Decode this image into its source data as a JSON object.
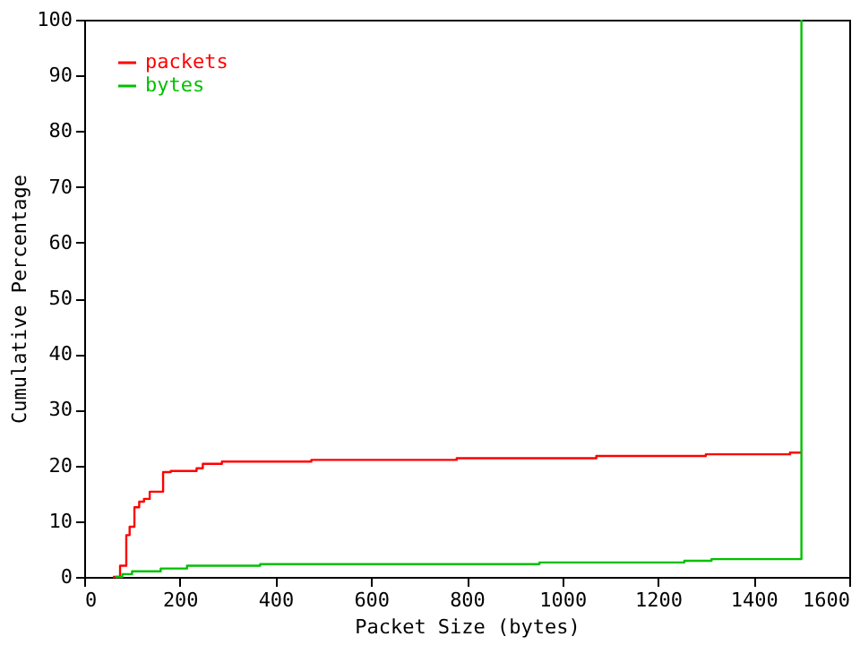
{
  "chart_data": {
    "type": "step",
    "xlabel": "Packet Size (bytes)",
    "ylabel": "Cumulative Percentage",
    "xlim": [
      0,
      1600
    ],
    "xticks": [
      0,
      200,
      400,
      600,
      800,
      1000,
      1200,
      1400,
      1600
    ],
    "ylim": [
      0,
      100
    ],
    "yticks": [
      0,
      10,
      20,
      30,
      40,
      50,
      60,
      70,
      80,
      90,
      100
    ],
    "grid": false,
    "legend": "top left",
    "marker": "none",
    "line_style": "solid",
    "series": [
      {
        "name": "packets",
        "color": "#ff0000",
        "x": [
          60,
          75,
          88,
          95,
          105,
          115,
          125,
          137,
          165,
          181,
          235,
          248,
          288,
          475,
          779,
          1071,
          1300,
          1476,
          1500
        ],
        "values": [
          0,
          2,
          7.5,
          9,
          12.5,
          13.5,
          14,
          15.3,
          18.8,
          19,
          19.5,
          20.3,
          20.7,
          21,
          21.3,
          21.7,
          22,
          22.3,
          22.3
        ]
      },
      {
        "name": "bytes",
        "color": "#00c000",
        "x": [
          65,
          80,
          100,
          160,
          215,
          368,
          952,
          1255,
          1312,
          1500
        ],
        "values": [
          0,
          0.5,
          1,
          1.5,
          2,
          2.3,
          2.6,
          2.9,
          3.2,
          100
        ]
      }
    ]
  }
}
